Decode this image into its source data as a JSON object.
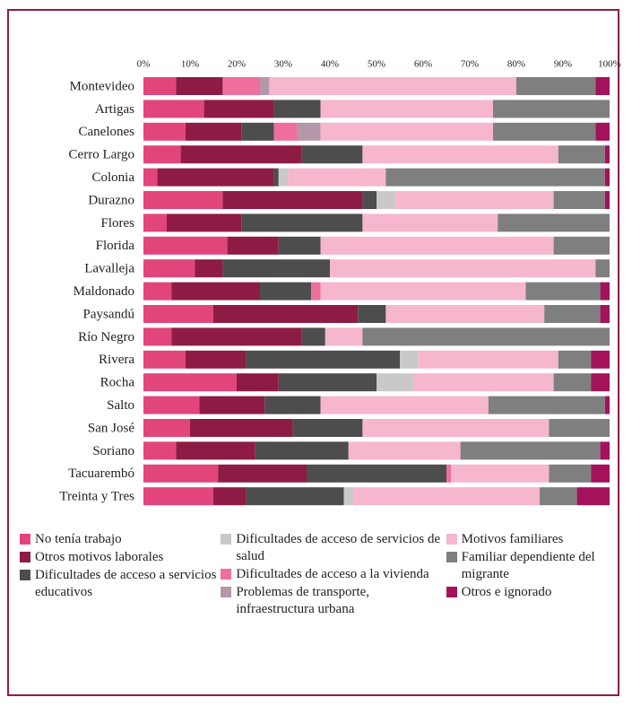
{
  "chart_data": {
    "type": "stacked_bar_horizontal",
    "categories": [
      "Montevideo",
      "Artigas",
      "Canelones",
      "Cerro Largo",
      "Colonia",
      "Durazno",
      "Flores",
      "Florida",
      "Lavalleja",
      "Maldonado",
      "Paysandú",
      "Río Negro",
      "Rivera",
      "Rocha",
      "Salto",
      "San José",
      "Soriano",
      "Tacuarembó",
      "Treinta y Tres"
    ],
    "xlim": [
      0,
      100
    ],
    "xticks": [
      {
        "value": 0,
        "label": "0%"
      },
      {
        "value": 10,
        "label": "10%"
      },
      {
        "value": 20,
        "label": "20%"
      },
      {
        "value": 30,
        "label": "30%"
      },
      {
        "value": 40,
        "label": "40%"
      },
      {
        "value": 50,
        "label": "50%"
      },
      {
        "value": 60,
        "label": "60%"
      },
      {
        "value": 70,
        "label": "70%"
      },
      {
        "value": 80,
        "label": "80%"
      },
      {
        "value": 90,
        "label": "90%"
      },
      {
        "value": 100,
        "label": "100%"
      }
    ],
    "series": [
      {
        "name": "No tenía trabajo",
        "color": "#e2457c",
        "values": [
          7,
          13,
          9,
          8,
          3,
          17,
          5,
          18,
          11,
          6,
          15,
          6,
          9,
          20,
          12,
          10,
          7,
          16,
          15
        ]
      },
      {
        "name": "Otros motivos laborales",
        "color": "#8e1b45",
        "values": [
          10,
          15,
          12,
          26,
          25,
          30,
          16,
          11,
          6,
          19,
          31,
          28,
          13,
          9,
          14,
          22,
          17,
          19,
          7
        ]
      },
      {
        "name": "Dificultades de acceso a servicios educativos",
        "color": "#4d4d4d",
        "values": [
          0,
          10,
          7,
          13,
          1,
          3,
          26,
          9,
          23,
          11,
          6,
          5,
          33,
          21,
          12,
          15,
          20,
          30,
          21
        ]
      },
      {
        "name": "Dificultades de acceso de servicios de salud",
        "color": "#c9c9c9",
        "values": [
          0,
          0,
          0,
          0,
          2,
          4,
          0,
          0,
          0,
          0,
          0,
          0,
          4,
          8,
          0,
          0,
          0,
          0,
          2
        ]
      },
      {
        "name": "Dificultades de acceso a la vivienda",
        "color": "#ee6f9d",
        "values": [
          8,
          0,
          5,
          0,
          0,
          0,
          0,
          0,
          0,
          2,
          0,
          0,
          0,
          0,
          0,
          0,
          0,
          1,
          0
        ]
      },
      {
        "name": "Problemas de transporte, infraestructura urbana",
        "color": "#b497a8",
        "values": [
          2,
          0,
          5,
          0,
          0,
          0,
          0,
          0,
          0,
          0,
          0,
          0,
          0,
          0,
          0,
          0,
          0,
          0,
          0
        ]
      },
      {
        "name": "Motivos familiares",
        "color": "#f6b6ce",
        "values": [
          53,
          37,
          37,
          42,
          21,
          34,
          29,
          50,
          57,
          44,
          34,
          8,
          30,
          30,
          36,
          40,
          24,
          21,
          40
        ]
      },
      {
        "name": "Familiar dependiente del migrante",
        "color": "#7f7f7f",
        "values": [
          17,
          25,
          22,
          10,
          47,
          11,
          24,
          12,
          3,
          16,
          12,
          53,
          7,
          8,
          25,
          13,
          30,
          9,
          8
        ]
      },
      {
        "name": "Otros e ignorado",
        "color": "#a3125b",
        "values": [
          3,
          0,
          3,
          1,
          1,
          1,
          0,
          0,
          0,
          2,
          2,
          0,
          4,
          4,
          1,
          0,
          2,
          4,
          7
        ]
      }
    ]
  }
}
